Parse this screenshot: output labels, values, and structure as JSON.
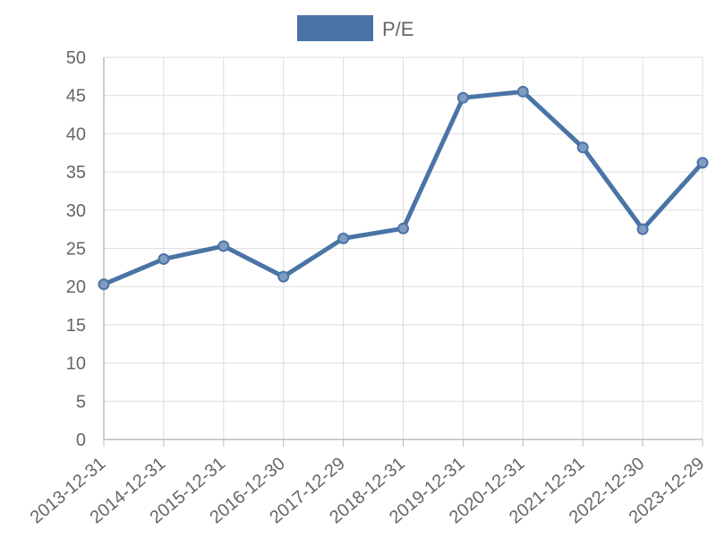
{
  "chart_data": {
    "type": "line",
    "x": [
      "2013-12-31",
      "2014-12-31",
      "2015-12-31",
      "2016-12-30",
      "2017-12-29",
      "2018-12-31",
      "2019-12-31",
      "2020-12-31",
      "2021-12-31",
      "2022-12-30",
      "2023-12-29"
    ],
    "series": [
      {
        "name": "P/E",
        "color": "#4a74a6",
        "values": [
          20.3,
          23.6,
          25.3,
          21.3,
          26.3,
          27.6,
          44.7,
          45.5,
          38.2,
          27.5,
          36.2
        ]
      }
    ],
    "ylim": [
      0,
      50
    ],
    "yticks": [
      0,
      5,
      10,
      15,
      20,
      25,
      30,
      35,
      40,
      45,
      50
    ],
    "grid": true,
    "legend_placement": "top-center"
  },
  "legend": {
    "label": "P/E",
    "color": "#4a74a6"
  }
}
